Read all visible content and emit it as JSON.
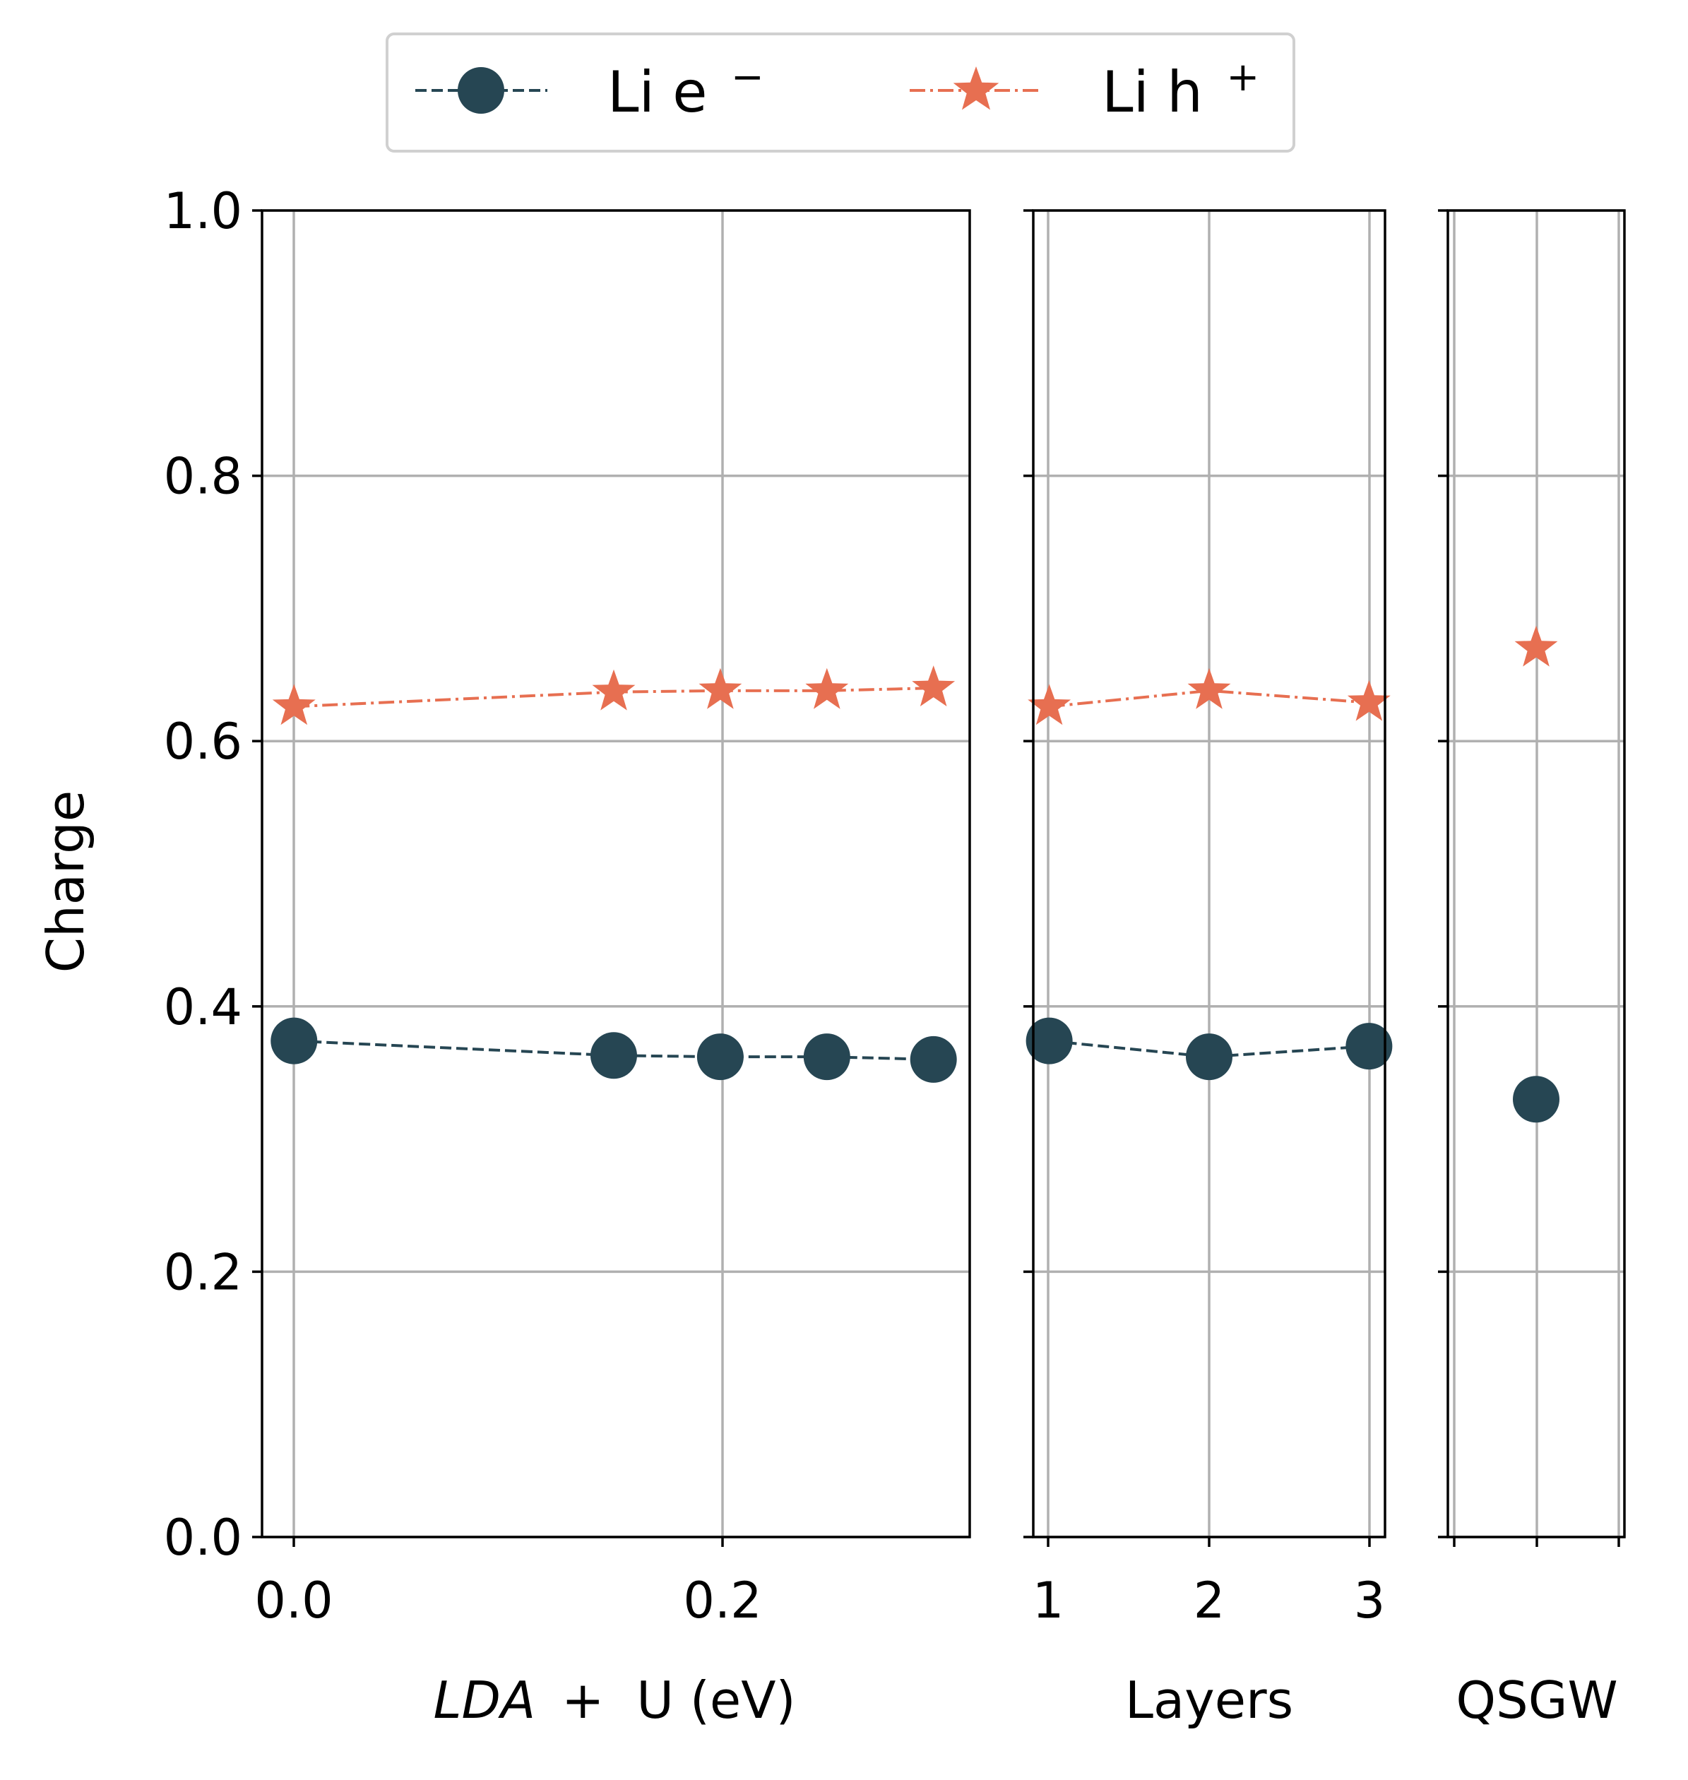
{
  "colors": {
    "electron": "#264653",
    "hole": "#e76f51",
    "grid": "#b0b0b0"
  },
  "legend": {
    "placement": "top-center",
    "entries": [
      {
        "label": "Li e",
        "sup": "−",
        "marker": "circle",
        "line": "dashed",
        "color": "#264653"
      },
      {
        "label": "Li h",
        "sup": "+",
        "marker": "star",
        "line": "dash-dot",
        "color": "#e76f51"
      }
    ]
  },
  "chart_data": [
    {
      "type": "line",
      "xlabel_italic": "LDA",
      "xlabel_rest": "+  U (eV)",
      "ylabel": "Charge",
      "ylim": [
        0,
        1.0
      ],
      "xlim": [
        -0.015,
        0.317
      ],
      "yticks": [
        "0.0",
        "0.2",
        "0.4",
        "0.6",
        "0.8",
        "1.0"
      ],
      "xticks": [
        "0.0",
        "0.2"
      ],
      "grid": true,
      "x": [
        0.0,
        0.15,
        0.2,
        0.25,
        0.3
      ],
      "series": [
        {
          "name": "Li e⁻",
          "values": [
            0.374,
            0.363,
            0.362,
            0.362,
            0.36
          ]
        },
        {
          "name": "Li h⁺",
          "values": [
            0.626,
            0.637,
            0.638,
            0.638,
            0.64
          ]
        }
      ]
    },
    {
      "type": "line",
      "xlabel": "Layers",
      "ylim": [
        0,
        1.0
      ],
      "xlim": [
        0.9,
        3.1
      ],
      "xticks": [
        "1",
        "2",
        "3"
      ],
      "grid": true,
      "x": [
        1,
        2,
        3
      ],
      "series": [
        {
          "name": "Li e⁻",
          "values": [
            0.374,
            0.362,
            0.37
          ]
        },
        {
          "name": "Li h⁺",
          "values": [
            0.626,
            0.638,
            0.629
          ]
        }
      ]
    },
    {
      "type": "scatter",
      "xlabel": "QSGW",
      "ylim": [
        0,
        1.0
      ],
      "xlim": [
        -0.05,
        0.05
      ],
      "xticks": [
        "",
        "",
        ""
      ],
      "grid": true,
      "x": [
        0.0
      ],
      "series": [
        {
          "name": "Li e⁻",
          "values": [
            0.33
          ]
        },
        {
          "name": "Li h⁺",
          "values": [
            0.67
          ]
        }
      ]
    }
  ]
}
